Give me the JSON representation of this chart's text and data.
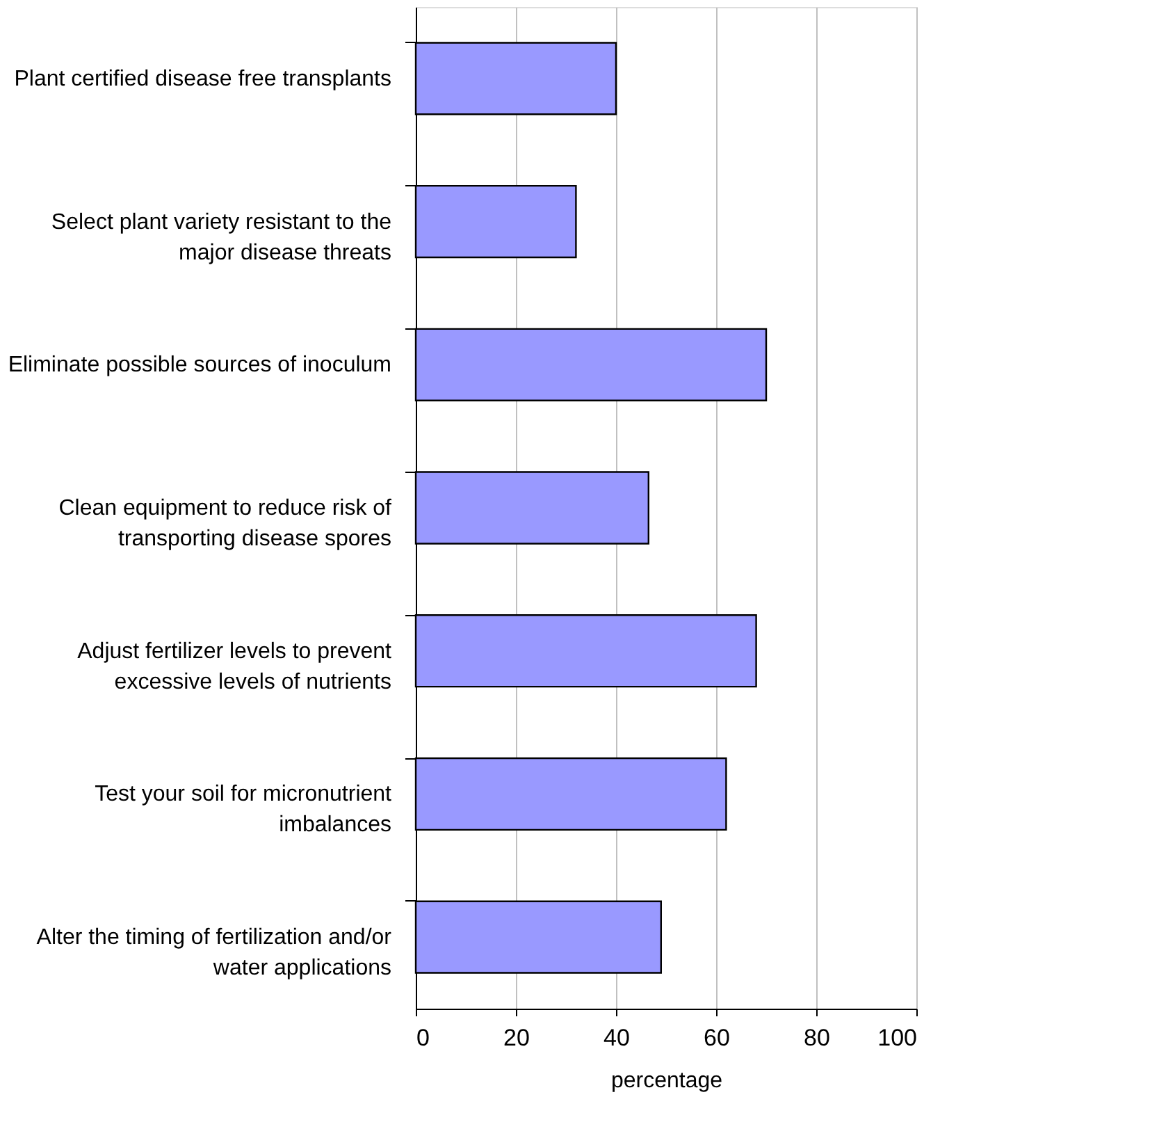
{
  "chart_data": {
    "type": "bar",
    "orientation": "horizontal",
    "xlabel": "percentage",
    "categories": [
      "Plant certified disease free transplants",
      "Select plant variety resistant to the major disease threats",
      "Eliminate possible sources of inoculum",
      "Clean equipment to reduce risk of transporting disease spores",
      "Adjust fertilizer levels to prevent excessive levels of nutrients",
      "Test your soil for micronutrient imbalances",
      "Alter the timing of fertilization and/or water applications"
    ],
    "values": [
      40,
      32,
      70,
      46.5,
      68,
      62,
      49
    ],
    "color": "#9999ff",
    "xlim": [
      0,
      100
    ],
    "xticks": [
      0,
      20,
      40,
      60,
      80,
      100
    ],
    "grid": "x"
  }
}
